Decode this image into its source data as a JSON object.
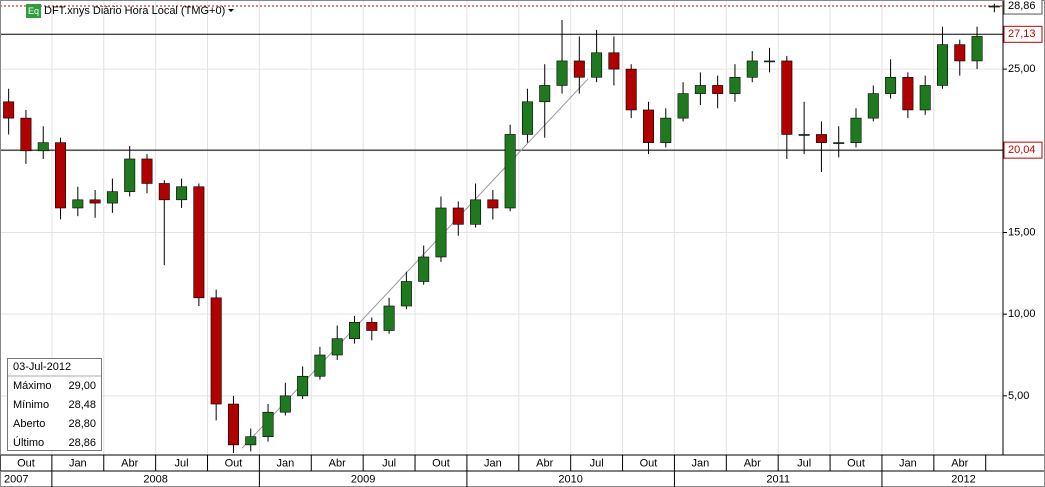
{
  "chart_data": {
    "type": "candlestick",
    "title": "DFT.xnys Diário Hora Local (TMG+0)",
    "badge": "Eq",
    "x": [
      "2007-10",
      "2007-11",
      "2007-12",
      "2008-01",
      "2008-02",
      "2008-03",
      "2008-04",
      "2008-05",
      "2008-06",
      "2008-07",
      "2008-08",
      "2008-09",
      "2008-10",
      "2008-11",
      "2008-12",
      "2009-01",
      "2009-02",
      "2009-03",
      "2009-04",
      "2009-05",
      "2009-06",
      "2009-07",
      "2009-08",
      "2009-09",
      "2009-10",
      "2009-11",
      "2009-12",
      "2010-01",
      "2010-02",
      "2010-03",
      "2010-04",
      "2010-05",
      "2010-06",
      "2010-07",
      "2010-08",
      "2010-09",
      "2010-10",
      "2010-11",
      "2010-12",
      "2011-01",
      "2011-02",
      "2011-03",
      "2011-04",
      "2011-05",
      "2011-06",
      "2011-07",
      "2011-08",
      "2011-09",
      "2011-10",
      "2011-11",
      "2011-12",
      "2012-01",
      "2012-02",
      "2012-03",
      "2012-04",
      "2012-05",
      "2012-06",
      "2012-07"
    ],
    "open": [
      23.0,
      22.0,
      20.0,
      20.5,
      16.5,
      17.0,
      16.8,
      17.5,
      19.5,
      18.0,
      17.0,
      17.8,
      11.0,
      4.5,
      2.0,
      2.5,
      4.0,
      5.0,
      6.2,
      7.5,
      8.5,
      9.5,
      9.0,
      10.5,
      12.0,
      13.5,
      16.5,
      15.5,
      17.0,
      16.5,
      21.0,
      23.0,
      24.0,
      25.5,
      24.5,
      26.0,
      25.0,
      22.5,
      20.5,
      22.0,
      23.5,
      24.0,
      23.5,
      24.5,
      25.5,
      25.5,
      21.0,
      21.0,
      20.5,
      20.5,
      22.0,
      23.5,
      24.5,
      22.5,
      24.0,
      26.5,
      25.5,
      28.8
    ],
    "high": [
      23.8,
      22.5,
      21.5,
      20.8,
      17.8,
      17.6,
      18.3,
      20.3,
      19.8,
      18.2,
      18.3,
      18.0,
      11.5,
      5.0,
      3.0,
      4.5,
      5.8,
      6.8,
      8.0,
      9.3,
      9.9,
      9.8,
      11.0,
      12.6,
      14.2,
      17.2,
      16.9,
      18.0,
      17.6,
      21.6,
      23.8,
      25.3,
      28.0,
      27.0,
      27.4,
      27.0,
      25.3,
      23.0,
      22.6,
      24.2,
      24.8,
      24.6,
      25.3,
      26.1,
      26.3,
      25.8,
      23.0,
      21.8,
      21.5,
      22.6,
      24.0,
      25.6,
      24.8,
      24.6,
      27.6,
      26.8,
      27.6,
      29.0
    ],
    "low": [
      21.0,
      19.2,
      19.5,
      15.8,
      16.0,
      15.9,
      16.2,
      17.2,
      17.4,
      13.0,
      16.5,
      10.5,
      3.5,
      1.5,
      1.6,
      2.2,
      3.8,
      4.8,
      6.0,
      7.2,
      8.2,
      8.4,
      8.8,
      10.3,
      11.8,
      13.2,
      14.8,
      15.3,
      15.8,
      16.3,
      20.5,
      20.8,
      23.5,
      23.5,
      24.2,
      24.0,
      22.0,
      19.8,
      20.2,
      21.8,
      22.8,
      22.6,
      23.0,
      24.2,
      24.8,
      19.5,
      19.8,
      18.7,
      19.6,
      20.2,
      21.8,
      23.2,
      22.0,
      22.2,
      23.8,
      24.6,
      25.0,
      28.48
    ],
    "close": [
      22.0,
      20.0,
      20.5,
      16.5,
      17.0,
      16.8,
      17.5,
      19.5,
      18.0,
      17.0,
      17.8,
      11.0,
      4.5,
      2.0,
      2.5,
      4.0,
      5.0,
      6.2,
      7.5,
      8.5,
      9.5,
      9.0,
      10.5,
      12.0,
      13.5,
      16.5,
      15.5,
      17.0,
      16.5,
      21.0,
      23.0,
      24.0,
      25.5,
      24.5,
      26.0,
      25.0,
      22.5,
      20.5,
      22.0,
      23.5,
      24.0,
      23.5,
      24.5,
      25.5,
      25.5,
      21.0,
      21.0,
      20.5,
      20.5,
      22.0,
      23.5,
      24.5,
      22.5,
      24.0,
      26.5,
      25.5,
      27.0,
      28.86
    ],
    "up_color": "#1f7a1f",
    "down_color": "#b00000",
    "ylim": [
      1.38,
      29.23
    ],
    "yticks": [
      {
        "value": 5,
        "label": "5,00"
      },
      {
        "value": 10,
        "label": "10,00"
      },
      {
        "value": 15,
        "label": "15,00"
      },
      {
        "value": 20,
        "label": "20,00"
      },
      {
        "value": 25,
        "label": "25,00"
      }
    ],
    "hlines": [
      {
        "value": 27.13,
        "label": "27,13"
      },
      {
        "value": 20.04,
        "label": "20,04"
      }
    ],
    "last": {
      "value": 28.86,
      "label": "28,86"
    },
    "trendline": {
      "x": [
        "2008-12",
        "2010-08"
      ],
      "values": [
        1.8,
        24.4
      ]
    },
    "quarters": [
      "Out",
      "Jan",
      "Abr",
      "Jul",
      "Out",
      "Jan",
      "Abr",
      "Jul",
      "Out",
      "Jan",
      "Abr",
      "Jul",
      "Out",
      "Jan",
      "Abr",
      "Jul",
      "Out",
      "Jan",
      "Abr"
    ],
    "years": [
      "2007",
      "2008",
      "2009",
      "2010",
      "2011",
      "2012"
    ],
    "info": {
      "date": "03-Jul-2012",
      "rows": [
        [
          "Máximo",
          "29,00"
        ],
        [
          "Mínimo",
          "28,48"
        ],
        [
          "Aberto",
          "28,80"
        ],
        [
          "Último",
          "28,86"
        ]
      ]
    }
  }
}
